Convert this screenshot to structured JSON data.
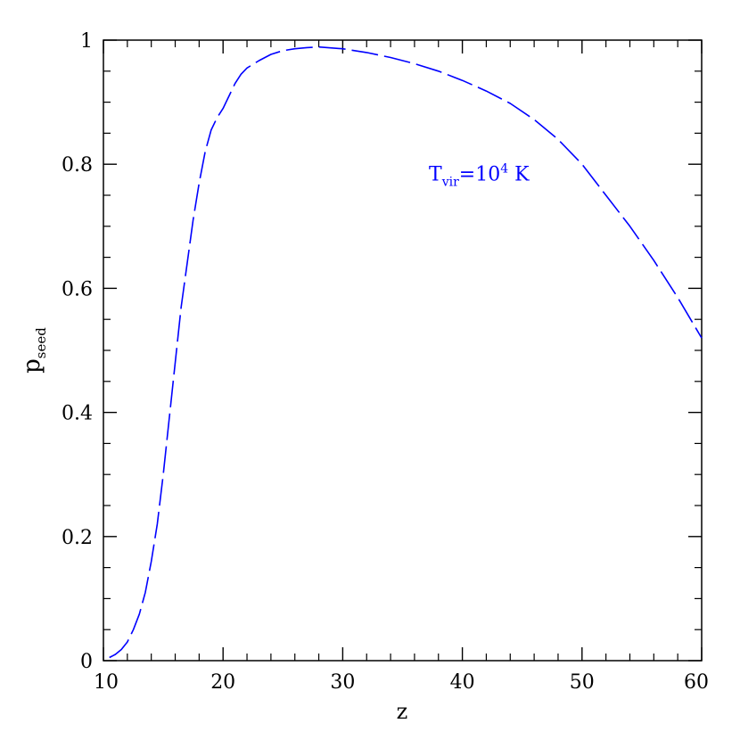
{
  "chart_data": {
    "type": "line",
    "xlabel": "z",
    "ylabel": {
      "main": "p",
      "sub": "seed"
    },
    "xlim": [
      10,
      60
    ],
    "ylim": [
      0,
      1
    ],
    "x_ticks": [
      10,
      20,
      30,
      40,
      50,
      60
    ],
    "x_tick_labels": [
      "10",
      "20",
      "30",
      "40",
      "50",
      "60"
    ],
    "y_ticks": [
      0,
      0.2,
      0.4,
      0.6,
      0.8,
      1
    ],
    "y_tick_labels": [
      "0",
      "0.2",
      "0.4",
      "0.6",
      "0.8",
      "1"
    ],
    "x_minor_step": 2,
    "y_minor_step": 0.05,
    "grid": false,
    "annotation": {
      "base": "T",
      "sub": "vir",
      "mid": "=10",
      "sup": "4",
      "end": " K",
      "x": 37.2,
      "y": 0.785
    },
    "series": [
      {
        "color": "#0000ff",
        "style": "dashed",
        "points": [
          [
            10.5,
            0.005
          ],
          [
            11,
            0.01
          ],
          [
            11.5,
            0.018
          ],
          [
            12,
            0.03
          ],
          [
            12.5,
            0.05
          ],
          [
            13,
            0.075
          ],
          [
            13.5,
            0.11
          ],
          [
            14,
            0.16
          ],
          [
            14.5,
            0.22
          ],
          [
            15,
            0.3
          ],
          [
            15.5,
            0.39
          ],
          [
            16,
            0.48
          ],
          [
            16.5,
            0.57
          ],
          [
            17,
            0.64
          ],
          [
            17.5,
            0.71
          ],
          [
            18,
            0.77
          ],
          [
            18.5,
            0.82
          ],
          [
            19,
            0.855
          ],
          [
            19.5,
            0.875
          ],
          [
            20,
            0.89
          ],
          [
            20.5,
            0.91
          ],
          [
            21,
            0.93
          ],
          [
            21.5,
            0.945
          ],
          [
            22,
            0.955
          ],
          [
            23,
            0.967
          ],
          [
            24,
            0.977
          ],
          [
            25,
            0.983
          ],
          [
            26,
            0.986
          ],
          [
            27,
            0.988
          ],
          [
            28,
            0.989
          ],
          [
            30,
            0.986
          ],
          [
            32,
            0.98
          ],
          [
            34,
            0.972
          ],
          [
            36,
            0.962
          ],
          [
            38,
            0.95
          ],
          [
            40,
            0.935
          ],
          [
            42,
            0.918
          ],
          [
            44,
            0.898
          ],
          [
            46,
            0.872
          ],
          [
            48,
            0.84
          ],
          [
            50,
            0.8
          ],
          [
            52,
            0.75
          ],
          [
            54,
            0.7
          ],
          [
            56,
            0.645
          ],
          [
            58,
            0.585
          ],
          [
            60,
            0.52
          ]
        ]
      }
    ]
  }
}
